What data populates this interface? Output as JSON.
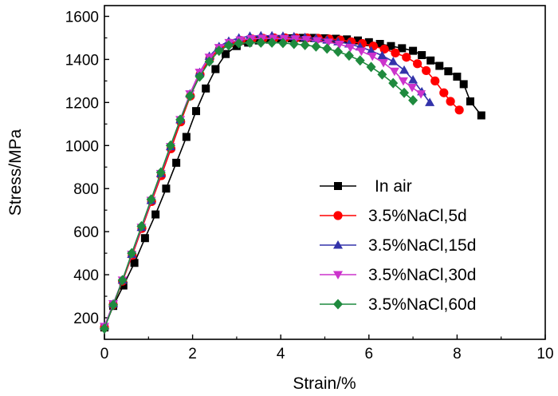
{
  "chart_data": {
    "type": "line",
    "title": "",
    "xlabel": "Strain/%",
    "ylabel": "Stress/MPa",
    "xlim": [
      0,
      10
    ],
    "ylim": [
      100,
      1650
    ],
    "xticks": [
      "0",
      "2",
      "4",
      "6",
      "8",
      "10"
    ],
    "yticks": [
      "200",
      "400",
      "600",
      "800",
      "1000",
      "1200",
      "1400",
      "1600"
    ],
    "legend_position": "right-lower",
    "series": [
      {
        "name": "In air",
        "color": "#000000",
        "marker": "square",
        "x": [
          0.0,
          0.2,
          0.43,
          0.68,
          0.92,
          1.16,
          1.4,
          1.63,
          1.86,
          2.08,
          2.3,
          2.52,
          2.75,
          3.0,
          3.26,
          3.5,
          3.75,
          4.0,
          4.25,
          4.5,
          4.75,
          5.0,
          5.25,
          5.5,
          5.75,
          6.0,
          6.25,
          6.5,
          6.75,
          7.0,
          7.2,
          7.4,
          7.6,
          7.8,
          8.0,
          8.15,
          8.3,
          8.55
        ],
        "y": [
          155,
          255,
          350,
          455,
          570,
          680,
          800,
          920,
          1040,
          1160,
          1265,
          1355,
          1425,
          1462,
          1478,
          1488,
          1492,
          1495,
          1498,
          1500,
          1500,
          1498,
          1496,
          1493,
          1488,
          1480,
          1472,
          1462,
          1452,
          1440,
          1420,
          1395,
          1370,
          1345,
          1320,
          1285,
          1205,
          1140
        ]
      },
      {
        "name": "3.5%NaCl,5d",
        "color": "#ff0000",
        "marker": "circle",
        "x": [
          0.0,
          0.2,
          0.41,
          0.63,
          0.85,
          1.07,
          1.29,
          1.51,
          1.73,
          1.95,
          2.17,
          2.39,
          2.61,
          2.85,
          3.1,
          3.35,
          3.6,
          3.85,
          4.1,
          4.35,
          4.6,
          4.85,
          5.1,
          5.35,
          5.6,
          5.85,
          6.1,
          6.35,
          6.6,
          6.85,
          7.1,
          7.3,
          7.5,
          7.7,
          7.85,
          8.05
        ],
        "y": [
          155,
          260,
          370,
          490,
          615,
          740,
          860,
          985,
          1110,
          1230,
          1330,
          1405,
          1448,
          1475,
          1488,
          1495,
          1498,
          1500,
          1500,
          1500,
          1500,
          1498,
          1495,
          1490,
          1482,
          1474,
          1462,
          1448,
          1430,
          1410,
          1380,
          1348,
          1300,
          1245,
          1205,
          1165
        ]
      },
      {
        "name": "3.5%NaCl,15d",
        "color": "#3333aa",
        "marker": "triangle-up",
        "x": [
          0.0,
          0.2,
          0.41,
          0.62,
          0.84,
          1.06,
          1.28,
          1.5,
          1.72,
          1.94,
          2.16,
          2.38,
          2.6,
          2.82,
          3.05,
          3.3,
          3.55,
          3.8,
          4.05,
          4.3,
          4.55,
          4.8,
          5.05,
          5.3,
          5.55,
          5.8,
          6.05,
          6.3,
          6.55,
          6.8,
          7.0,
          7.2,
          7.38
        ],
        "y": [
          160,
          265,
          375,
          495,
          620,
          745,
          870,
          995,
          1120,
          1240,
          1340,
          1415,
          1460,
          1485,
          1500,
          1508,
          1510,
          1510,
          1508,
          1506,
          1502,
          1497,
          1490,
          1482,
          1472,
          1458,
          1440,
          1418,
          1390,
          1350,
          1305,
          1250,
          1200
        ]
      },
      {
        "name": "3.5%NaCl,30d",
        "color": "#cc33cc",
        "marker": "triangle-down",
        "x": [
          0.0,
          0.2,
          0.41,
          0.62,
          0.84,
          1.06,
          1.28,
          1.5,
          1.72,
          1.94,
          2.16,
          2.38,
          2.6,
          2.83,
          3.08,
          3.33,
          3.58,
          3.83,
          4.08,
          4.33,
          4.58,
          4.83,
          5.08,
          5.33,
          5.58,
          5.83,
          6.08,
          6.33,
          6.58,
          6.78,
          6.98,
          7.18
        ],
        "y": [
          160,
          265,
          375,
          495,
          620,
          745,
          870,
          995,
          1120,
          1240,
          1340,
          1410,
          1455,
          1478,
          1490,
          1496,
          1498,
          1498,
          1497,
          1495,
          1492,
          1487,
          1480,
          1470,
          1456,
          1438,
          1415,
          1385,
          1345,
          1300,
          1270,
          1240
        ]
      },
      {
        "name": "3.5%NaCl,60d",
        "color": "#1f8a3e",
        "marker": "diamond",
        "x": [
          0.0,
          0.2,
          0.41,
          0.62,
          0.84,
          1.06,
          1.28,
          1.5,
          1.72,
          1.94,
          2.16,
          2.38,
          2.6,
          2.82,
          3.05,
          3.3,
          3.55,
          3.8,
          4.05,
          4.3,
          4.55,
          4.8,
          5.05,
          5.3,
          5.55,
          5.8,
          6.05,
          6.3,
          6.55,
          6.8,
          7.0
        ],
        "y": [
          150,
          260,
          375,
          500,
          625,
          750,
          875,
          1000,
          1120,
          1230,
          1320,
          1390,
          1440,
          1465,
          1475,
          1478,
          1478,
          1478,
          1476,
          1472,
          1467,
          1460,
          1450,
          1436,
          1418,
          1395,
          1365,
          1330,
          1290,
          1245,
          1210
        ]
      }
    ]
  }
}
